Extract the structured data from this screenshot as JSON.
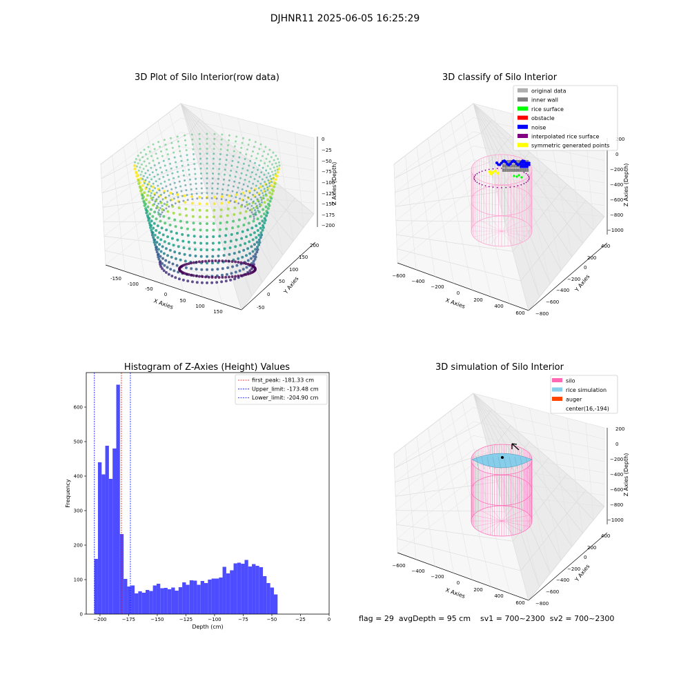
{
  "figure": {
    "suptitle": "DJHNR11 2025-06-05 16:25:29",
    "status_text": "flag = 29  avgDepth = 95 cm    sv1 = 700~2300  sv2 = 700~2300"
  },
  "chart_data": [
    {
      "type": "scatter",
      "projection": "3d",
      "title": "3D Plot of Silo Interior(row data)",
      "xlabel": "X Axies",
      "ylabel": "Y Axies",
      "zlabel": "Z Axies (Depth)",
      "x_ticks": [
        "-150",
        "-100",
        "-50",
        "0",
        "50",
        "100",
        "150"
      ],
      "y_ticks": [
        "-50",
        "0",
        "50",
        "100",
        "150",
        "200"
      ],
      "z_ticks": [
        "0",
        "−25",
        "−50",
        "−75",
        "−100",
        "−125",
        "−150",
        "−175",
        "−200"
      ],
      "colormap": "viridis",
      "xlim": [
        -170,
        170
      ],
      "ylim": [
        -60,
        210
      ],
      "zlim": [
        -210,
        0
      ]
    },
    {
      "type": "scatter",
      "projection": "3d",
      "title": "3D classify of Silo Interior",
      "xlabel": "X Axies",
      "ylabel": "Y Axies",
      "zlabel": "Z Axies (Depth)",
      "x_ticks": [
        "−600",
        "−400",
        "−200",
        "0",
        "200",
        "400",
        "600"
      ],
      "y_ticks": [
        "−800",
        "−600",
        "−400",
        "−200",
        "0",
        "200",
        "400"
      ],
      "z_ticks": [
        "200",
        "0",
        "−200",
        "−400",
        "−600",
        "−800",
        "−1000"
      ],
      "legend_position": "top-right",
      "legend": [
        {
          "label": "original data",
          "color": "#b0b0b0"
        },
        {
          "label": "inner wall",
          "color": "#808080"
        },
        {
          "label": "rice surface",
          "color": "#00ff00"
        },
        {
          "label": "obstacle",
          "color": "#ff0000"
        },
        {
          "label": "noise",
          "color": "#0000ff"
        },
        {
          "label": "interpolated rice surface",
          "color": "#800080"
        },
        {
          "label": "symmetric generated points",
          "color": "#ffff00"
        }
      ]
    },
    {
      "type": "bar",
      "title": "Histogram of Z-Axies (Height) Values",
      "xlabel": "Depth (cm)",
      "ylabel": "Frequency",
      "xlim": [
        -212,
        0
      ],
      "ylim": [
        0,
        700
      ],
      "x_ticks": [
        "−200",
        "−175",
        "−150",
        "−125",
        "−100",
        "−75",
        "−50",
        "−25",
        "0"
      ],
      "y_ticks": [
        "0",
        "100",
        "200",
        "300",
        "400",
        "500",
        "600"
      ],
      "bar_color": "#4d4dff",
      "bin_start": -205,
      "bin_width": 3.2,
      "values": [
        160,
        440,
        405,
        488,
        392,
        480,
        665,
        232,
        102,
        80,
        83,
        60,
        66,
        62,
        70,
        67,
        83,
        88,
        75,
        76,
        72,
        77,
        68,
        78,
        92,
        85,
        98,
        97,
        85,
        96,
        90,
        100,
        103,
        103,
        106,
        137,
        118,
        127,
        147,
        149,
        146,
        157,
        138,
        145,
        140,
        136,
        110,
        90,
        77,
        57
      ],
      "reference_lines": [
        {
          "label": "first_peak: -181.33 cm",
          "value": -181.33,
          "color": "#ff0000"
        },
        {
          "label": "Upper_limit: -173.48 cm",
          "value": -173.48,
          "color": "#0000ff"
        },
        {
          "label": "Lower_limit: -204.90 cm",
          "value": -204.9,
          "color": "#0000ff"
        }
      ],
      "legend_position": "top-right"
    },
    {
      "type": "scatter",
      "projection": "3d",
      "title": "3D simulation of Silo Interior",
      "xlabel": "X Axies",
      "ylabel": "Y Axies",
      "zlabel": "Z Axies (Depth)",
      "x_ticks": [
        "−600",
        "−400",
        "−200",
        "0",
        "200",
        "400",
        "600"
      ],
      "y_ticks": [
        "−800",
        "−600",
        "−400",
        "−200",
        "0",
        "200",
        "400"
      ],
      "z_ticks": [
        "200",
        "0",
        "−200",
        "−400",
        "−600",
        "−800",
        "−1000"
      ],
      "legend_position": "top-right",
      "legend": [
        {
          "label": "silo",
          "color": "#ff69b4"
        },
        {
          "label": "rice simulation",
          "color": "#87ceeb"
        },
        {
          "label": "auger",
          "color": "#ff4500"
        },
        {
          "label": "center(16,-194)",
          "color": ""
        }
      ]
    }
  ]
}
